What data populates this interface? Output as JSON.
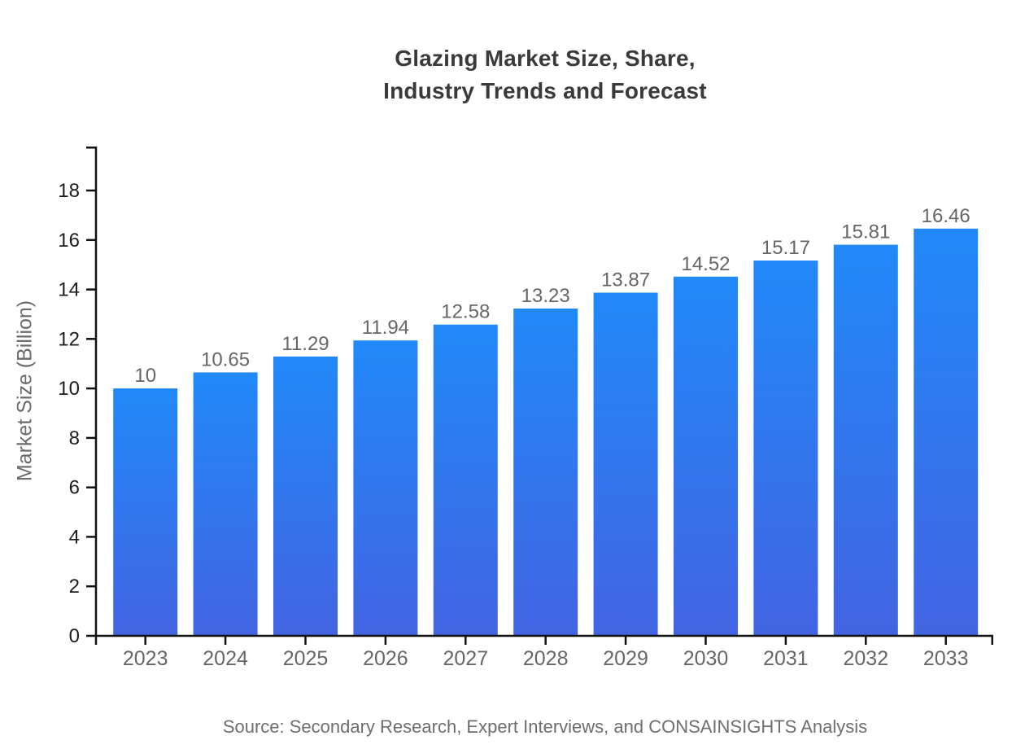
{
  "chart_data": {
    "type": "bar",
    "title_lines": [
      "Glazing Market Size, Share,",
      "Industry Trends and Forecast"
    ],
    "title": "Glazing Market Size, Share, Industry Trends and Forecast",
    "xlabel": "",
    "ylabel": "Market Size (Billion)",
    "categories": [
      "2023",
      "2024",
      "2025",
      "2026",
      "2027",
      "2028",
      "2029",
      "2030",
      "2031",
      "2032",
      "2033"
    ],
    "values": [
      10,
      10.65,
      11.29,
      11.94,
      12.58,
      13.23,
      13.87,
      14.52,
      15.17,
      15.81,
      16.46
    ],
    "value_labels": [
      "10",
      "10.65",
      "11.29",
      "11.94",
      "12.58",
      "13.23",
      "13.87",
      "14.52",
      "15.17",
      "15.81",
      "16.46"
    ],
    "ylim": [
      0,
      19.8
    ],
    "yticks": [
      0,
      2,
      4,
      6,
      8,
      10,
      12,
      14,
      16,
      18
    ],
    "grid": false,
    "legend": null
  },
  "source_note": "Source: Secondary Research, Expert Interviews, and CONSAINSIGHTS Analysis",
  "colors": {
    "bar_gradient_top": "#2189F8",
    "bar_gradient_bottom": "#4364E2",
    "axis_line": "#111111",
    "title_text": "#3a3a3a",
    "ytick_label": "#1c1c1c",
    "xtick_label": "#666666",
    "value_label": "#666666",
    "ylabel_text": "#6b6b6b",
    "source_text": "#6e6e6e",
    "background": "#ffffff"
  }
}
